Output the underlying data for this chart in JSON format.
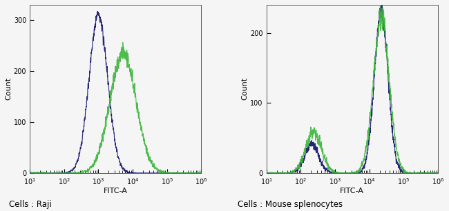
{
  "panel1_title": "Cells : Raji",
  "panel2_title": "Cells : Mouse splenocytes",
  "xlabel": "FITC-A",
  "ylabel": "Count",
  "panel1_ylim": [
    0,
    330
  ],
  "panel2_ylim": [
    0,
    240
  ],
  "panel1_yticks": [
    0,
    100,
    200,
    300
  ],
  "panel2_yticks": [
    0,
    100,
    200
  ],
  "blue_color": "#1a1a6e",
  "green_color": "#3db53d",
  "bg_color": "#f5f5f5",
  "label_fontsize": 8,
  "tick_fontsize": 7,
  "subtitle_fontsize": 8.5
}
